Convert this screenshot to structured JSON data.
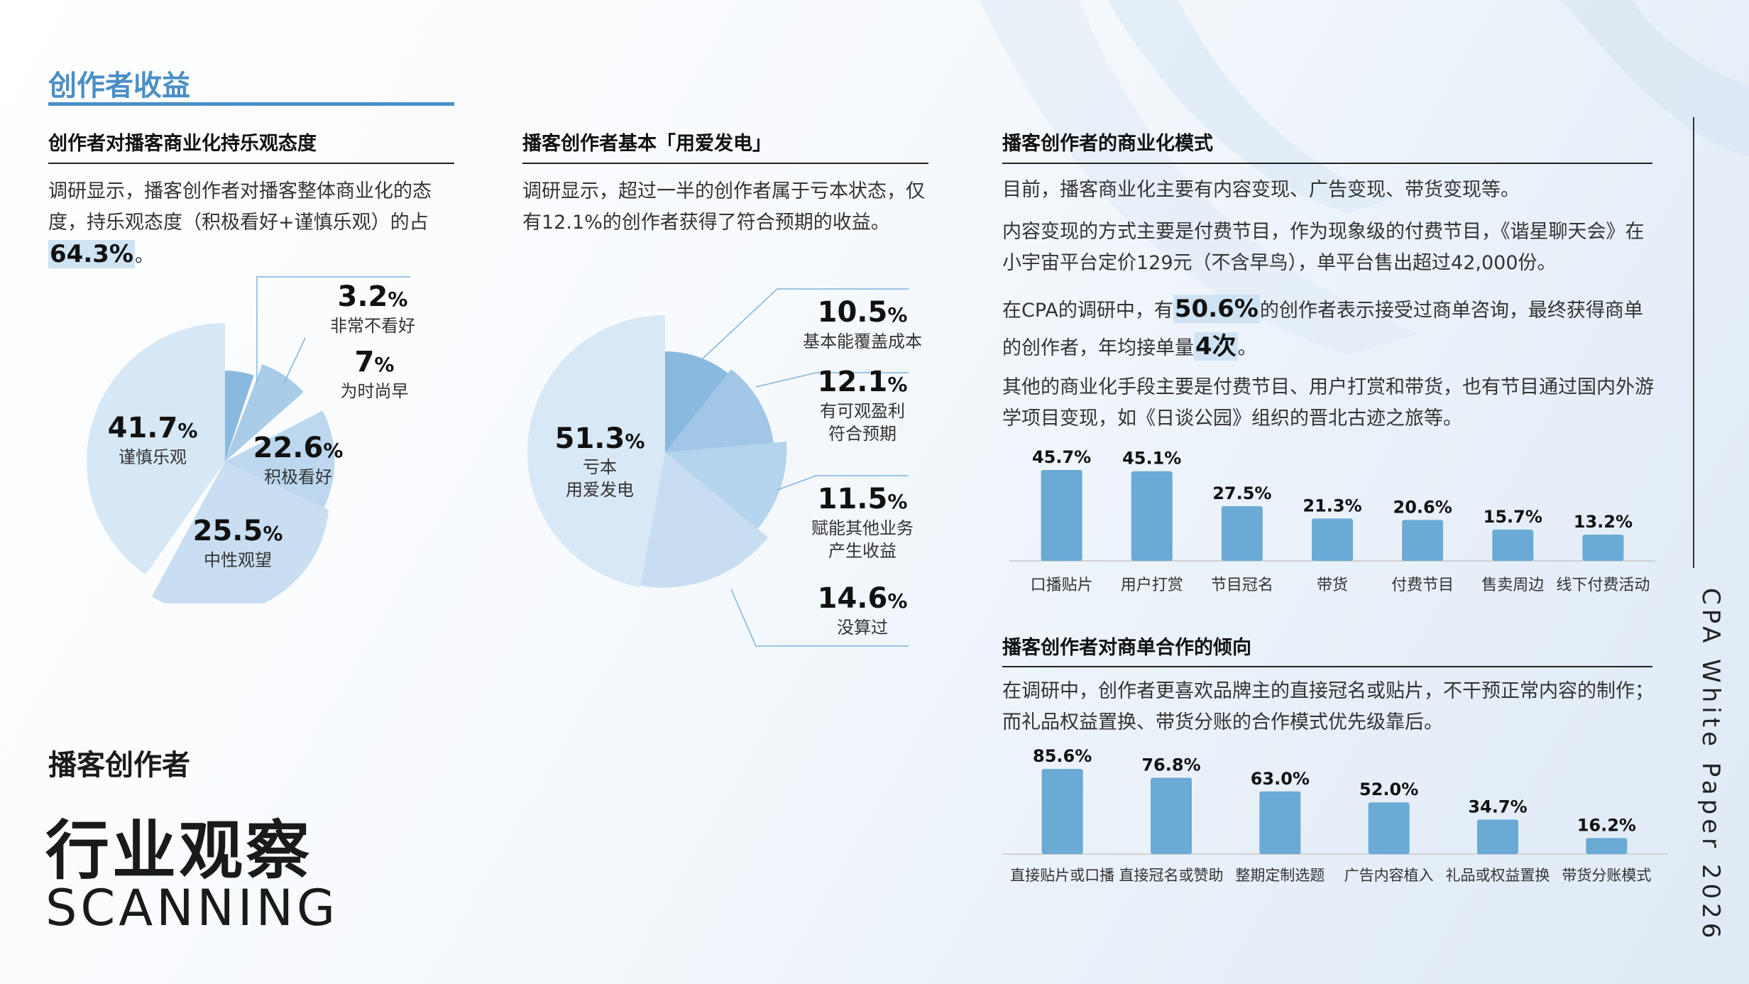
{
  "section_title": "创作者收益",
  "col1": {
    "heading": "创作者对播客商业化持乐观态度",
    "para": "调研显示，播客创作者对播客整体商业化的态度，持乐观态度（积极看好+谨慎乐观）的占",
    "para_highlight": "64.3%",
    "para_end": "。",
    "pie": [
      {
        "value": "3.2",
        "unit": "%",
        "label": "非常不看好"
      },
      {
        "value": "7",
        "unit": "%",
        "label": "为时尚早"
      },
      {
        "value": "22.6",
        "unit": "%",
        "label": "积极看好"
      },
      {
        "value": "25.5",
        "unit": "%",
        "label": "中性观望"
      },
      {
        "value": "41.7",
        "unit": "%",
        "label": "谨慎乐观"
      }
    ]
  },
  "col2": {
    "heading": "播客创作者基本「用爱发电」",
    "para": "调研显示，超过一半的创作者属于亏本状态，仅有12.1%的创作者获得了符合预期的收益。",
    "pie": [
      {
        "value": "10.5",
        "unit": "%",
        "label": "基本能覆盖成本"
      },
      {
        "value": "12.1",
        "unit": "%",
        "label": "有可观盈利符合预期"
      },
      {
        "value": "11.5",
        "unit": "%",
        "label": "赋能其他业务产生收益"
      },
      {
        "value": "14.6",
        "unit": "%",
        "label": "没算过"
      },
      {
        "value": "51.3",
        "unit": "%",
        "label": "亏本用爱发电"
      }
    ],
    "label_lines": {
      "l12a": "有可观盈利",
      "l12b": "符合预期",
      "l11a": "赋能其他业务",
      "l11b": "产生收益",
      "l51a": "亏本",
      "l51b": "用爱发电"
    }
  },
  "col3": {
    "heading": "播客创作者的商业化模式",
    "p1": "目前，播客商业化主要有内容变现、广告变现、带货变现等。",
    "p2": "内容变现的方式主要是付费节目，作为现象级的付费节目，《谐星聊天会》在小宇宙平台定价129元（不含早鸟），单平台售出超过42,000份。",
    "p3a": "在CPA的调研中，有",
    "p3_hl1": "50.6%",
    "p3b": "的创作者表示接受过商单咨询，最终获得商单的创作者，年均接单量",
    "p3_hl2": "4次",
    "p3c": "。",
    "p4": "其他的商业化手段主要是付费节目、用户打赏和带货，也有节目通过国内外游学项目变现，如《日谈公园》组织的晋北古迹之旅等。",
    "heading2": "播客创作者对商单合作的倾向",
    "p5": "在调研中，创作者更喜欢品牌主的直接冠名或贴片，不干预正常内容的制作；而礼品权益置换、带货分账的合作模式优先级靠后。"
  },
  "chart_data": [
    {
      "type": "pie",
      "title": "创作者对播客商业化持乐观态度",
      "categories": [
        "非常不看好",
        "为时尚早",
        "积极看好",
        "中性观望",
        "谨慎乐观"
      ],
      "values": [
        3.2,
        7,
        22.6,
        25.5,
        41.7
      ]
    },
    {
      "type": "pie",
      "title": "播客创作者基本「用爱发电」",
      "categories": [
        "基本能覆盖成本",
        "有可观盈利符合预期",
        "赋能其他业务产生收益",
        "没算过",
        "亏本用爱发电"
      ],
      "values": [
        10.5,
        12.1,
        11.5,
        14.6,
        51.3
      ]
    },
    {
      "type": "bar",
      "title": "播客创作者的商业化模式",
      "categories": [
        "口播贴片",
        "用户打赏",
        "节目冠名",
        "带货",
        "付费节目",
        "售卖周边",
        "线下付费活动"
      ],
      "values": [
        45.7,
        45.1,
        27.5,
        21.3,
        20.6,
        15.7,
        13.2
      ],
      "labels": [
        "45.7%",
        "45.1%",
        "27.5%",
        "21.3%",
        "20.6%",
        "15.7%",
        "13.2%"
      ],
      "ylim": [
        0,
        50
      ],
      "color": "#6aaad5"
    },
    {
      "type": "bar",
      "title": "播客创作者对商单合作的倾向",
      "categories": [
        "直接贴片或口播",
        "直接冠名或赞助",
        "整期定制选题",
        "广告内容植入",
        "礼品或权益置换",
        "带货分账模式"
      ],
      "values": [
        85.6,
        76.8,
        63.0,
        52.0,
        34.7,
        16.2
      ],
      "labels": [
        "85.6%",
        "76.8%",
        "63.0%",
        "52.0%",
        "34.7%",
        "16.2%"
      ],
      "ylim": [
        0,
        90
      ],
      "color": "#6aaad5"
    }
  ],
  "bottom": {
    "sub": "播客创作者",
    "main": "行业观察",
    "en": "SCANNING"
  },
  "vertical_text": "CPA White Paper 2026",
  "colors": {
    "accent": "#4a8ec6",
    "bar": "#6aaad5",
    "pie_dark": "#8ab9df",
    "pie_mid": "#a9cce8",
    "pie_light": "#d3e5f4"
  }
}
